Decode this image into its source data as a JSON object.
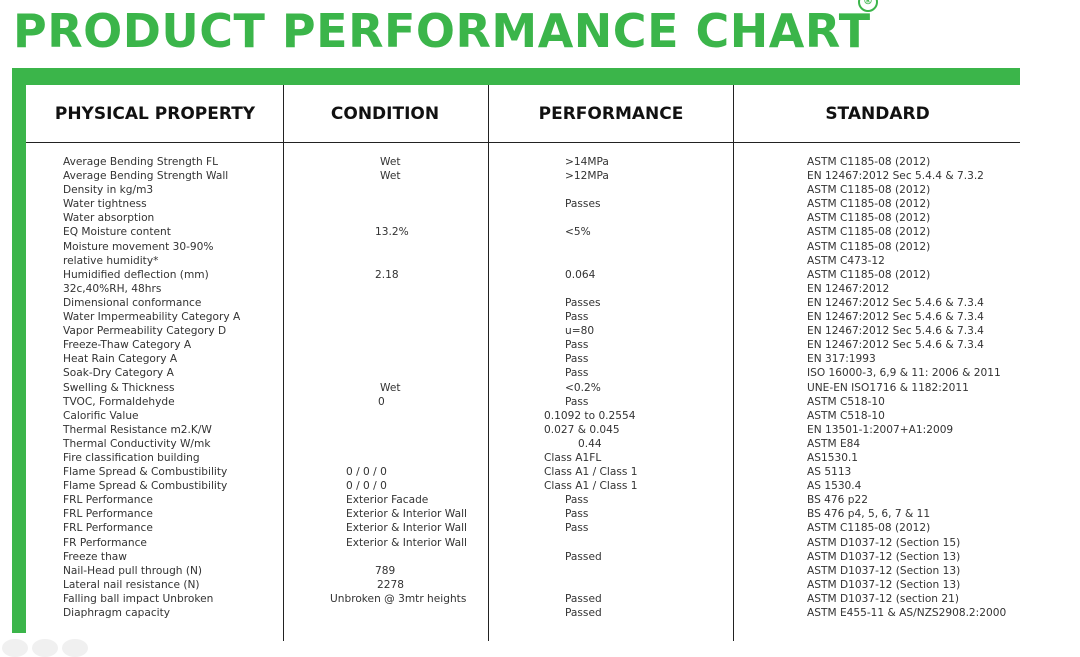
{
  "title": "PRODUCT PERFORMANCE CHART",
  "registered_mark": "®",
  "colors": {
    "brand_green": "#3bb54a",
    "rule": "#222222",
    "text": "#333333"
  },
  "headers": {
    "property": "PHYSICAL PROPERTY",
    "condition": "CONDITION",
    "performance": "PERFORMANCE",
    "standard": "STANDARD"
  },
  "property": [
    "Average Bending Strength FL",
    "Average Bending Strength Wall",
    "Density in kg/m3",
    "Water tightness",
    "Water absorption",
    "EQ Moisture content",
    "Moisture movement 30-90%",
    "relative humidity*",
    "Humidified deflection (mm)",
    "32c,40%RH, 48hrs",
    "Dimensional conformance",
    "Water Impermeability Category A",
    "Vapor Permeability Category D",
    "Freeze-Thaw Category A",
    "Heat Rain Category A",
    "Soak-Dry Category A",
    "Swelling & Thickness",
    "TVOC, Formaldehyde",
    "Calorific Value",
    "Thermal Resistance m2.K/W",
    "Thermal Conductivity W/mk",
    "Fire classification building",
    "Flame Spread & Combustibility",
    "Flame Spread & Combustibility",
    "FRL Performance",
    "FRL Performance",
    "FRL Performance",
    "FR Performance",
    "Freeze thaw",
    "Nail-Head pull through (N)",
    "Lateral nail resistance (N)",
    "Falling ball impact Unbroken",
    "Diaphragm capacity"
  ],
  "condition": [
    "Wet",
    "Wet",
    "",
    "",
    "",
    "13.2%",
    "",
    "",
    "2.18",
    "",
    "",
    "",
    "",
    "",
    "",
    "",
    "Wet",
    "0",
    "",
    "",
    "",
    "",
    "0 / 0 / 0",
    "0 / 0 / 0",
    "Exterior Facade",
    "Exterior & Interior Wall",
    "Exterior & Interior Wall",
    "Exterior & Interior Wall",
    "",
    "789",
    "2278",
    "Unbroken @ 3mtr heights",
    ""
  ],
  "performance": [
    ">14MPa",
    ">12MPa",
    "",
    "Passes",
    "",
    "<5%",
    "",
    "",
    "0.064",
    "",
    "Passes",
    "Pass",
    "u=80",
    "Pass",
    "Pass",
    "Pass",
    "<0.2%",
    "Pass",
    "0.1092 to 0.2554",
    "0.027 & 0.045",
    "0.44",
    "Class A1FL",
    "Class A1 / Class 1",
    "Class A1 / Class 1",
    "Pass",
    "Pass",
    "Pass",
    "",
    "Passed",
    "",
    "",
    "Passed",
    "Passed"
  ],
  "standard": [
    "ASTM C1185-08 (2012)",
    "EN 12467:2012 Sec 5.4.4 & 7.3.2",
    "ASTM C1185-08 (2012)",
    "ASTM C1185-08 (2012)",
    "ASTM C1185-08 (2012)",
    "ASTM C1185-08 (2012)",
    "ASTM C1185-08 (2012)",
    "ASTM C473-12",
    "ASTM C1185-08 (2012)",
    "EN 12467:2012",
    "EN 12467:2012 Sec 5.4.6 & 7.3.4",
    "EN 12467:2012 Sec 5.4.6 & 7.3.4",
    "EN 12467:2012 Sec 5.4.6 & 7.3.4",
    "EN 12467:2012 Sec 5.4.6 & 7.3.4",
    "EN 317:1993",
    "ISO 16000-3, 6,9 & 11: 2006 & 2011",
    "UNE-EN ISO1716 & 1182:2011",
    "ASTM C518-10",
    "ASTM C518-10",
    "EN 13501-1:2007+A1:2009",
    "ASTM E84",
    "AS1530.1",
    "AS 5113",
    "AS 1530.4",
    "BS 476 p22",
    "BS 476 p4, 5, 6, 7 & 11",
    "ASTM C1185-08 (2012)",
    "ASTM D1037-12 (Section 15)",
    "ASTM D1037-12 (Section 13)",
    "ASTM D1037-12 (Section 13)",
    "ASTM D1037-12 (Section 13)",
    "ASTM D1037-12 (section 21)",
    "ASTM E455-11 & AS/NZS2908.2:2000"
  ]
}
